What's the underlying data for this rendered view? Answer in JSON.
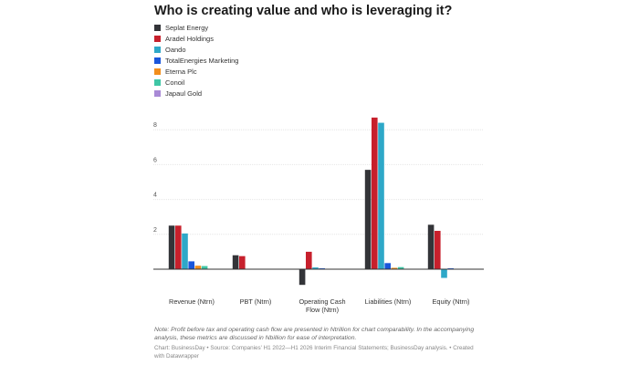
{
  "title": "Who is creating value and who is leveraging it?",
  "note": "Note: Profit before tax and operating cash flow are presented in Ntrillion for chart comparability. In the accompanying analysis, these metrics are discussed in Nbillion for ease of interpretation.",
  "credit": "Chart: BusinessDay • Source: Companies' H1 2022—H1 2026 Interim Financial Statements; BusinessDay analysis. • Created with Datawrapper",
  "chart_data": {
    "type": "bar",
    "title": "Who is creating value and who is leveraging it?",
    "categories": [
      "Revenue (Ntrn)",
      "PBT (Ntrn)",
      "Operating Cash Flow (Ntrn)",
      "Liabilities (Ntrn)",
      "Equity (Ntrn)"
    ],
    "ylim": [
      -1,
      9
    ],
    "yticks": [
      2,
      4,
      6,
      8
    ],
    "grid": true,
    "legend_position": "top-left",
    "series": [
      {
        "name": "Seplat Energy",
        "color": "#333438",
        "values": [
          2.5,
          0.8,
          -0.9,
          5.7,
          2.55
        ]
      },
      {
        "name": "Aradel Holdings",
        "color": "#c7202c",
        "values": [
          2.5,
          0.75,
          1.0,
          8.7,
          2.2
        ]
      },
      {
        "name": "Oando",
        "color": "#2ea8c8",
        "values": [
          2.05,
          0.0,
          0.1,
          8.4,
          -0.5
        ]
      },
      {
        "name": "TotalEnergies Marketing",
        "color": "#1a56db",
        "values": [
          0.45,
          0.0,
          0.05,
          0.35,
          0.05
        ]
      },
      {
        "name": "Eterna Plc",
        "color": "#f28e1c",
        "values": [
          0.2,
          0.0,
          0.02,
          0.08,
          0.02
        ]
      },
      {
        "name": "Conoil",
        "color": "#3fc6a5",
        "values": [
          0.18,
          0.0,
          0.02,
          0.12,
          0.02
        ]
      },
      {
        "name": "Japaul Gold",
        "color": "#a98ad6",
        "values": [
          0.0,
          0.0,
          0.0,
          0.0,
          0.0
        ]
      }
    ],
    "category_lines": [
      [
        "Revenue (Ntrn)"
      ],
      [
        "PBT (Ntrn)"
      ],
      [
        "Operating Cash",
        "Flow (Ntrn)"
      ],
      [
        "Liabilities (Ntrn)"
      ],
      [
        "Equity (Ntrn)"
      ]
    ]
  }
}
